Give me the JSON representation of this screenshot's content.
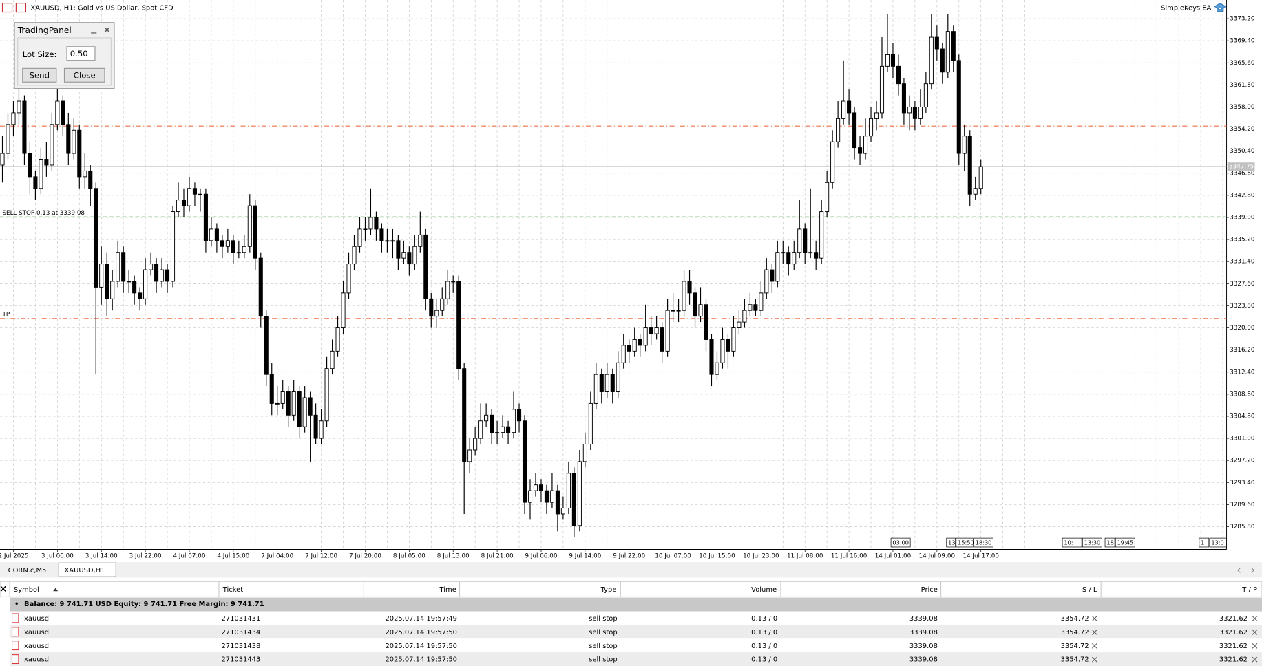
{
  "window": {
    "title": "XAUUSD, H1:  Gold vs US Dollar, Spot CFD",
    "ea_name": "SimpleKeys EA"
  },
  "panel": {
    "title": "TradingPanel",
    "lot_label": "Lot Size:",
    "lot_value": "0.50",
    "buttons": [
      "Send",
      "Close"
    ]
  },
  "chart_data": {
    "type": "candlestick",
    "ylim": [
      3281.9,
      3376.4
    ],
    "yticks": [
      {
        "value": 3373.2,
        "label": "3373.20"
      },
      {
        "value": 3369.4,
        "label": "3369.40"
      },
      {
        "value": 3365.6,
        "label": "3365.60"
      },
      {
        "value": 3361.8,
        "label": "3361.80"
      },
      {
        "value": 3358,
        "label": "3358.00"
      },
      {
        "value": 3354.2,
        "label": "3354.20"
      },
      {
        "value": 3350.4,
        "label": "3350.40"
      },
      {
        "value": 3346.6,
        "label": "3346.60"
      },
      {
        "value": 3342.8,
        "label": "3342.80"
      },
      {
        "value": 3339,
        "label": "3339.00"
      },
      {
        "value": 3335.2,
        "label": "3335.20"
      },
      {
        "value": 3331.4,
        "label": "3331.40"
      },
      {
        "value": 3327.6,
        "label": "3327.60"
      },
      {
        "value": 3323.8,
        "label": "3323.80"
      },
      {
        "value": 3320,
        "label": "3320.00"
      },
      {
        "value": 3316.2,
        "label": "3316.20"
      },
      {
        "value": 3312.4,
        "label": "3312.40"
      },
      {
        "value": 3308.6,
        "label": "3308.60"
      },
      {
        "value": 3304.8,
        "label": "3304.80"
      },
      {
        "value": 3301,
        "label": "3301.00"
      },
      {
        "value": 3297.2,
        "label": "3297.20"
      },
      {
        "value": 3293.4,
        "label": "3293.40"
      },
      {
        "value": 3289.6,
        "label": "3289.60"
      },
      {
        "value": 3285.8,
        "label": "3285.80"
      }
    ],
    "x_labels": [
      "2 Jul 2025",
      "3 Jul 06:00",
      "3 Jul 14:00",
      "3 Jul 22:00",
      "4 Jul 07:00",
      "4 Jul 15:00",
      "7 Jul 04:00",
      "7 Jul 12:00",
      "7 Jul 20:00",
      "8 Jul 05:00",
      "8 Jul 13:00",
      "8 Jul 21:00",
      "9 Jul 06:00",
      "9 Jul 14:00",
      "9 Jul 22:00",
      "10 Jul 07:00",
      "10 Jul 15:00",
      "10 Jul 23:00",
      "11 Jul 08:00",
      "11 Jul 16:00",
      "14 Jul 01:00",
      "14 Jul 09:00",
      "14 Jul 17:00"
    ],
    "grid": true,
    "up_color": "#ffffff",
    "down_color": "#000000",
    "levels": [
      {
        "value": 3354.72,
        "color": "#f07048"
      },
      {
        "value": 3339.08,
        "color": "#2a9a2a",
        "label": "SELL STOP 0.13 at 3339.08"
      },
      {
        "value": 3321.62,
        "color": "#f07048",
        "label": "TP"
      }
    ],
    "last_price": 3347.75,
    "time_markers": [
      "03:00",
      "13:",
      "15:50",
      "18:30",
      "10:",
      "13:30",
      "18",
      "19:45",
      "1",
      "13:0"
    ],
    "candles": [
      [
        3348,
        3353,
        3345,
        3350
      ],
      [
        3350,
        3357,
        3349,
        3355
      ],
      [
        3355,
        3359,
        3353,
        3357
      ],
      [
        3357,
        3362,
        3355,
        3359
      ],
      [
        3359,
        3360,
        3348,
        3350
      ],
      [
        3350,
        3352,
        3343,
        3346
      ],
      [
        3346,
        3347,
        3342,
        3344
      ],
      [
        3344,
        3351,
        3343,
        3349
      ],
      [
        3349,
        3352,
        3346,
        3348
      ],
      [
        3348,
        3357,
        3347,
        3355
      ],
      [
        3355,
        3362,
        3354,
        3359
      ],
      [
        3359,
        3360,
        3353,
        3355
      ],
      [
        3355,
        3357,
        3348,
        3350
      ],
      [
        3350,
        3356,
        3349,
        3354
      ],
      [
        3354,
        3355,
        3344,
        3346
      ],
      [
        3346,
        3350,
        3344,
        3347
      ],
      [
        3347,
        3348,
        3341,
        3344
      ],
      [
        3344,
        3345,
        3312,
        3327
      ],
      [
        3327,
        3334,
        3324,
        3331
      ],
      [
        3331,
        3333,
        3322,
        3325
      ],
      [
        3325,
        3330,
        3323,
        3328
      ],
      [
        3328,
        3335,
        3327,
        3333
      ],
      [
        3333,
        3334,
        3326,
        3328
      ],
      [
        3328,
        3330,
        3326,
        3328
      ],
      [
        3328,
        3329,
        3324,
        3326
      ],
      [
        3326,
        3327,
        3323,
        3325
      ],
      [
        3325,
        3332,
        3324,
        3330
      ],
      [
        3330,
        3333,
        3329,
        3331
      ],
      [
        3331,
        3332,
        3326,
        3328
      ],
      [
        3328,
        3332,
        3327,
        3330
      ],
      [
        3330,
        3331,
        3326,
        3328
      ],
      [
        3328,
        3341,
        3327,
        3340
      ],
      [
        3340,
        3345,
        3339,
        3342
      ],
      [
        3342,
        3344,
        3339,
        3341
      ],
      [
        3341,
        3346,
        3340,
        3344
      ],
      [
        3344,
        3345,
        3341,
        3343
      ],
      [
        3343,
        3344,
        3340,
        3343
      ],
      [
        3343,
        3344,
        3333,
        3335
      ],
      [
        3335,
        3339,
        3334,
        3337
      ],
      [
        3337,
        3338,
        3333,
        3335
      ],
      [
        3335,
        3336,
        3332,
        3334
      ],
      [
        3334,
        3337,
        3333,
        3335
      ],
      [
        3335,
        3336,
        3331,
        3333
      ],
      [
        3333,
        3335,
        3332,
        3333
      ],
      [
        3333,
        3336,
        3332,
        3334
      ],
      [
        3334,
        3343,
        3333,
        3341
      ],
      [
        3341,
        3342,
        3330,
        3332
      ],
      [
        3332,
        3333,
        3320,
        3322
      ],
      [
        3322,
        3323,
        3310,
        3312
      ],
      [
        3312,
        3314,
        3305,
        3307
      ],
      [
        3307,
        3310,
        3305,
        3307
      ],
      [
        3307,
        3311,
        3306,
        3309
      ],
      [
        3309,
        3310,
        3303,
        3305
      ],
      [
        3305,
        3311,
        3304,
        3309
      ],
      [
        3309,
        3310,
        3301,
        3303
      ],
      [
        3303,
        3310,
        3302,
        3308
      ],
      [
        3308,
        3309,
        3297,
        3305
      ],
      [
        3305,
        3307,
        3300,
        3301
      ],
      [
        3301,
        3306,
        3300,
        3304
      ],
      [
        3304,
        3315,
        3303,
        3313
      ],
      [
        3313,
        3318,
        3312,
        3316
      ],
      [
        3316,
        3322,
        3315,
        3320
      ],
      [
        3320,
        3328,
        3319,
        3326
      ],
      [
        3326,
        3333,
        3325,
        3331
      ],
      [
        3331,
        3336,
        3330,
        3334
      ],
      [
        3334,
        3339,
        3333,
        3337
      ],
      [
        3337,
        3339,
        3335,
        3337
      ],
      [
        3337,
        3344,
        3336,
        3339
      ],
      [
        3339,
        3340,
        3335,
        3337
      ],
      [
        3337,
        3338,
        3333,
        3335
      ],
      [
        3335,
        3337,
        3333,
        3335
      ],
      [
        3335,
        3337,
        3332,
        3335
      ],
      [
        3335,
        3336,
        3330,
        3332
      ],
      [
        3332,
        3335,
        3331,
        3333
      ],
      [
        3333,
        3334,
        3329,
        3331
      ],
      [
        3331,
        3336,
        3330,
        3334
      ],
      [
        3334,
        3340,
        3333,
        3336
      ],
      [
        3336,
        3337,
        3323,
        3325
      ],
      [
        3325,
        3326,
        3320,
        3322
      ],
      [
        3322,
        3325,
        3320,
        3323
      ],
      [
        3323,
        3327,
        3322,
        3325
      ],
      [
        3325,
        3330,
        3324,
        3328
      ],
      [
        3328,
        3329,
        3326,
        3328
      ],
      [
        3328,
        3329,
        3311,
        3313
      ],
      [
        3313,
        3314,
        3288,
        3297
      ],
      [
        3297,
        3301,
        3295,
        3299
      ],
      [
        3299,
        3303,
        3298,
        3301
      ],
      [
        3301,
        3307,
        3300,
        3304
      ],
      [
        3304,
        3307,
        3303,
        3305
      ],
      [
        3305,
        3306,
        3300,
        3302
      ],
      [
        3302,
        3304,
        3300,
        3302
      ],
      [
        3302,
        3305,
        3301,
        3303
      ],
      [
        3303,
        3304,
        3300,
        3302
      ],
      [
        3302,
        3309,
        3301,
        3306
      ],
      [
        3306,
        3307,
        3302,
        3304
      ],
      [
        3304,
        3305,
        3288,
        3290
      ],
      [
        3290,
        3294,
        3287,
        3292
      ],
      [
        3292,
        3295,
        3291,
        3293
      ],
      [
        3293,
        3294,
        3290,
        3292
      ],
      [
        3292,
        3293,
        3288,
        3290
      ],
      [
        3290,
        3295,
        3289,
        3292
      ],
      [
        3292,
        3293,
        3285,
        3288
      ],
      [
        3288,
        3291,
        3287,
        3289
      ],
      [
        3289,
        3297,
        3288,
        3295
      ],
      [
        3295,
        3296,
        3284,
        3286
      ],
      [
        3286,
        3299,
        3285,
        3297
      ],
      [
        3297,
        3302,
        3296,
        3300
      ],
      [
        3300,
        3309,
        3299,
        3307
      ],
      [
        3307,
        3314,
        3306,
        3312
      ],
      [
        3312,
        3313,
        3307,
        3309
      ],
      [
        3309,
        3314,
        3308,
        3312
      ],
      [
        3312,
        3313,
        3307,
        3309
      ],
      [
        3309,
        3316,
        3308,
        3314
      ],
      [
        3314,
        3319,
        3313,
        3317
      ],
      [
        3317,
        3318,
        3314,
        3316
      ],
      [
        3316,
        3320,
        3315,
        3318
      ],
      [
        3318,
        3319,
        3315,
        3317
      ],
      [
        3317,
        3324,
        3316,
        3320
      ],
      [
        3320,
        3322,
        3317,
        3319
      ],
      [
        3319,
        3322,
        3318,
        3320
      ],
      [
        3320,
        3321,
        3314,
        3316
      ],
      [
        3316,
        3325,
        3315,
        3323
      ],
      [
        3323,
        3326,
        3321,
        3323
      ],
      [
        3323,
        3325,
        3321,
        3323
      ],
      [
        3323,
        3330,
        3322,
        3328
      ],
      [
        3328,
        3330,
        3324,
        3326
      ],
      [
        3326,
        3327,
        3320,
        3322
      ],
      [
        3322,
        3327,
        3321,
        3324
      ],
      [
        3324,
        3325,
        3316,
        3318
      ],
      [
        3318,
        3319,
        3310,
        3312
      ],
      [
        3312,
        3316,
        3311,
        3314
      ],
      [
        3314,
        3320,
        3313,
        3318
      ],
      [
        3318,
        3319,
        3313,
        3316
      ],
      [
        3316,
        3322,
        3315,
        3320
      ],
      [
        3320,
        3323,
        3319,
        3321
      ],
      [
        3321,
        3325,
        3320,
        3323
      ],
      [
        3323,
        3326,
        3322,
        3324
      ],
      [
        3324,
        3325,
        3322,
        3323
      ],
      [
        3323,
        3328,
        3322,
        3326
      ],
      [
        3326,
        3332,
        3325,
        3330
      ],
      [
        3330,
        3331,
        3326,
        3328
      ],
      [
        3328,
        3335,
        3327,
        3333
      ],
      [
        3333,
        3335,
        3331,
        3333
      ],
      [
        3333,
        3334,
        3329,
        3331
      ],
      [
        3331,
        3335,
        3330,
        3333
      ],
      [
        3333,
        3342,
        3332,
        3337
      ],
      [
        3337,
        3338,
        3331,
        3333
      ],
      [
        3333,
        3344,
        3332,
        3333
      ],
      [
        3333,
        3335,
        3330,
        3332
      ],
      [
        3332,
        3342,
        3331,
        3340
      ],
      [
        3340,
        3347,
        3339,
        3345
      ],
      [
        3345,
        3354,
        3344,
        3352
      ],
      [
        3352,
        3359,
        3351,
        3356
      ],
      [
        3356,
        3366,
        3355,
        3359
      ],
      [
        3359,
        3361,
        3355,
        3357
      ],
      [
        3357,
        3358,
        3349,
        3351
      ],
      [
        3351,
        3353,
        3348,
        3350
      ],
      [
        3350,
        3356,
        3349,
        3353
      ],
      [
        3353,
        3358,
        3352,
        3356
      ],
      [
        3356,
        3359,
        3354,
        3357
      ],
      [
        3357,
        3370,
        3356,
        3365
      ],
      [
        3365,
        3374,
        3364,
        3367
      ],
      [
        3367,
        3369,
        3363,
        3365
      ],
      [
        3365,
        3367,
        3360,
        3362
      ],
      [
        3362,
        3363,
        3355,
        3357
      ],
      [
        3357,
        3360,
        3354,
        3358
      ],
      [
        3358,
        3359,
        3354,
        3356
      ],
      [
        3356,
        3361,
        3355,
        3358
      ],
      [
        3358,
        3364,
        3357,
        3362
      ],
      [
        3362,
        3374,
        3361,
        3370
      ],
      [
        3370,
        3372,
        3366,
        3368
      ],
      [
        3368,
        3369,
        3362,
        3364
      ],
      [
        3364,
        3374,
        3363,
        3371
      ],
      [
        3371,
        3372,
        3364,
        3366
      ],
      [
        3366,
        3367,
        3348,
        3350
      ],
      [
        3350,
        3355,
        3347,
        3353
      ],
      [
        3353,
        3354,
        3341,
        3343
      ],
      [
        3343,
        3346,
        3342,
        3344
      ],
      [
        3344,
        3349,
        3343,
        3347.75
      ]
    ]
  },
  "tabs": [
    "CORN.c,M5",
    "XAUUSD,H1"
  ],
  "table": {
    "columns": [
      "Symbol",
      "Ticket",
      "Time",
      "Type",
      "Volume",
      "Price",
      "S / L",
      "T / P"
    ],
    "summary": "Balance: 9 741.71 USD  Equity: 9 741.71  Free Margin: 9 741.71",
    "rows": [
      [
        "xauusd",
        "271031431",
        "2025.07.14 19:57:49",
        "sell stop",
        "0.13 / 0",
        "3339.08",
        "3354.72",
        "3321.62"
      ],
      [
        "xauusd",
        "271031434",
        "2025.07.14 19:57:50",
        "sell stop",
        "0.13 / 0",
        "3339.08",
        "3354.72",
        "3321.62"
      ],
      [
        "xauusd",
        "271031438",
        "2025.07.14 19:57:50",
        "sell stop",
        "0.13 / 0",
        "3339.08",
        "3354.72",
        "3321.62"
      ],
      [
        "xauusd",
        "271031443",
        "2025.07.14 19:57:50",
        "sell stop",
        "0.13 / 0",
        "3339.08",
        "3354.72",
        "3321.62"
      ]
    ]
  }
}
